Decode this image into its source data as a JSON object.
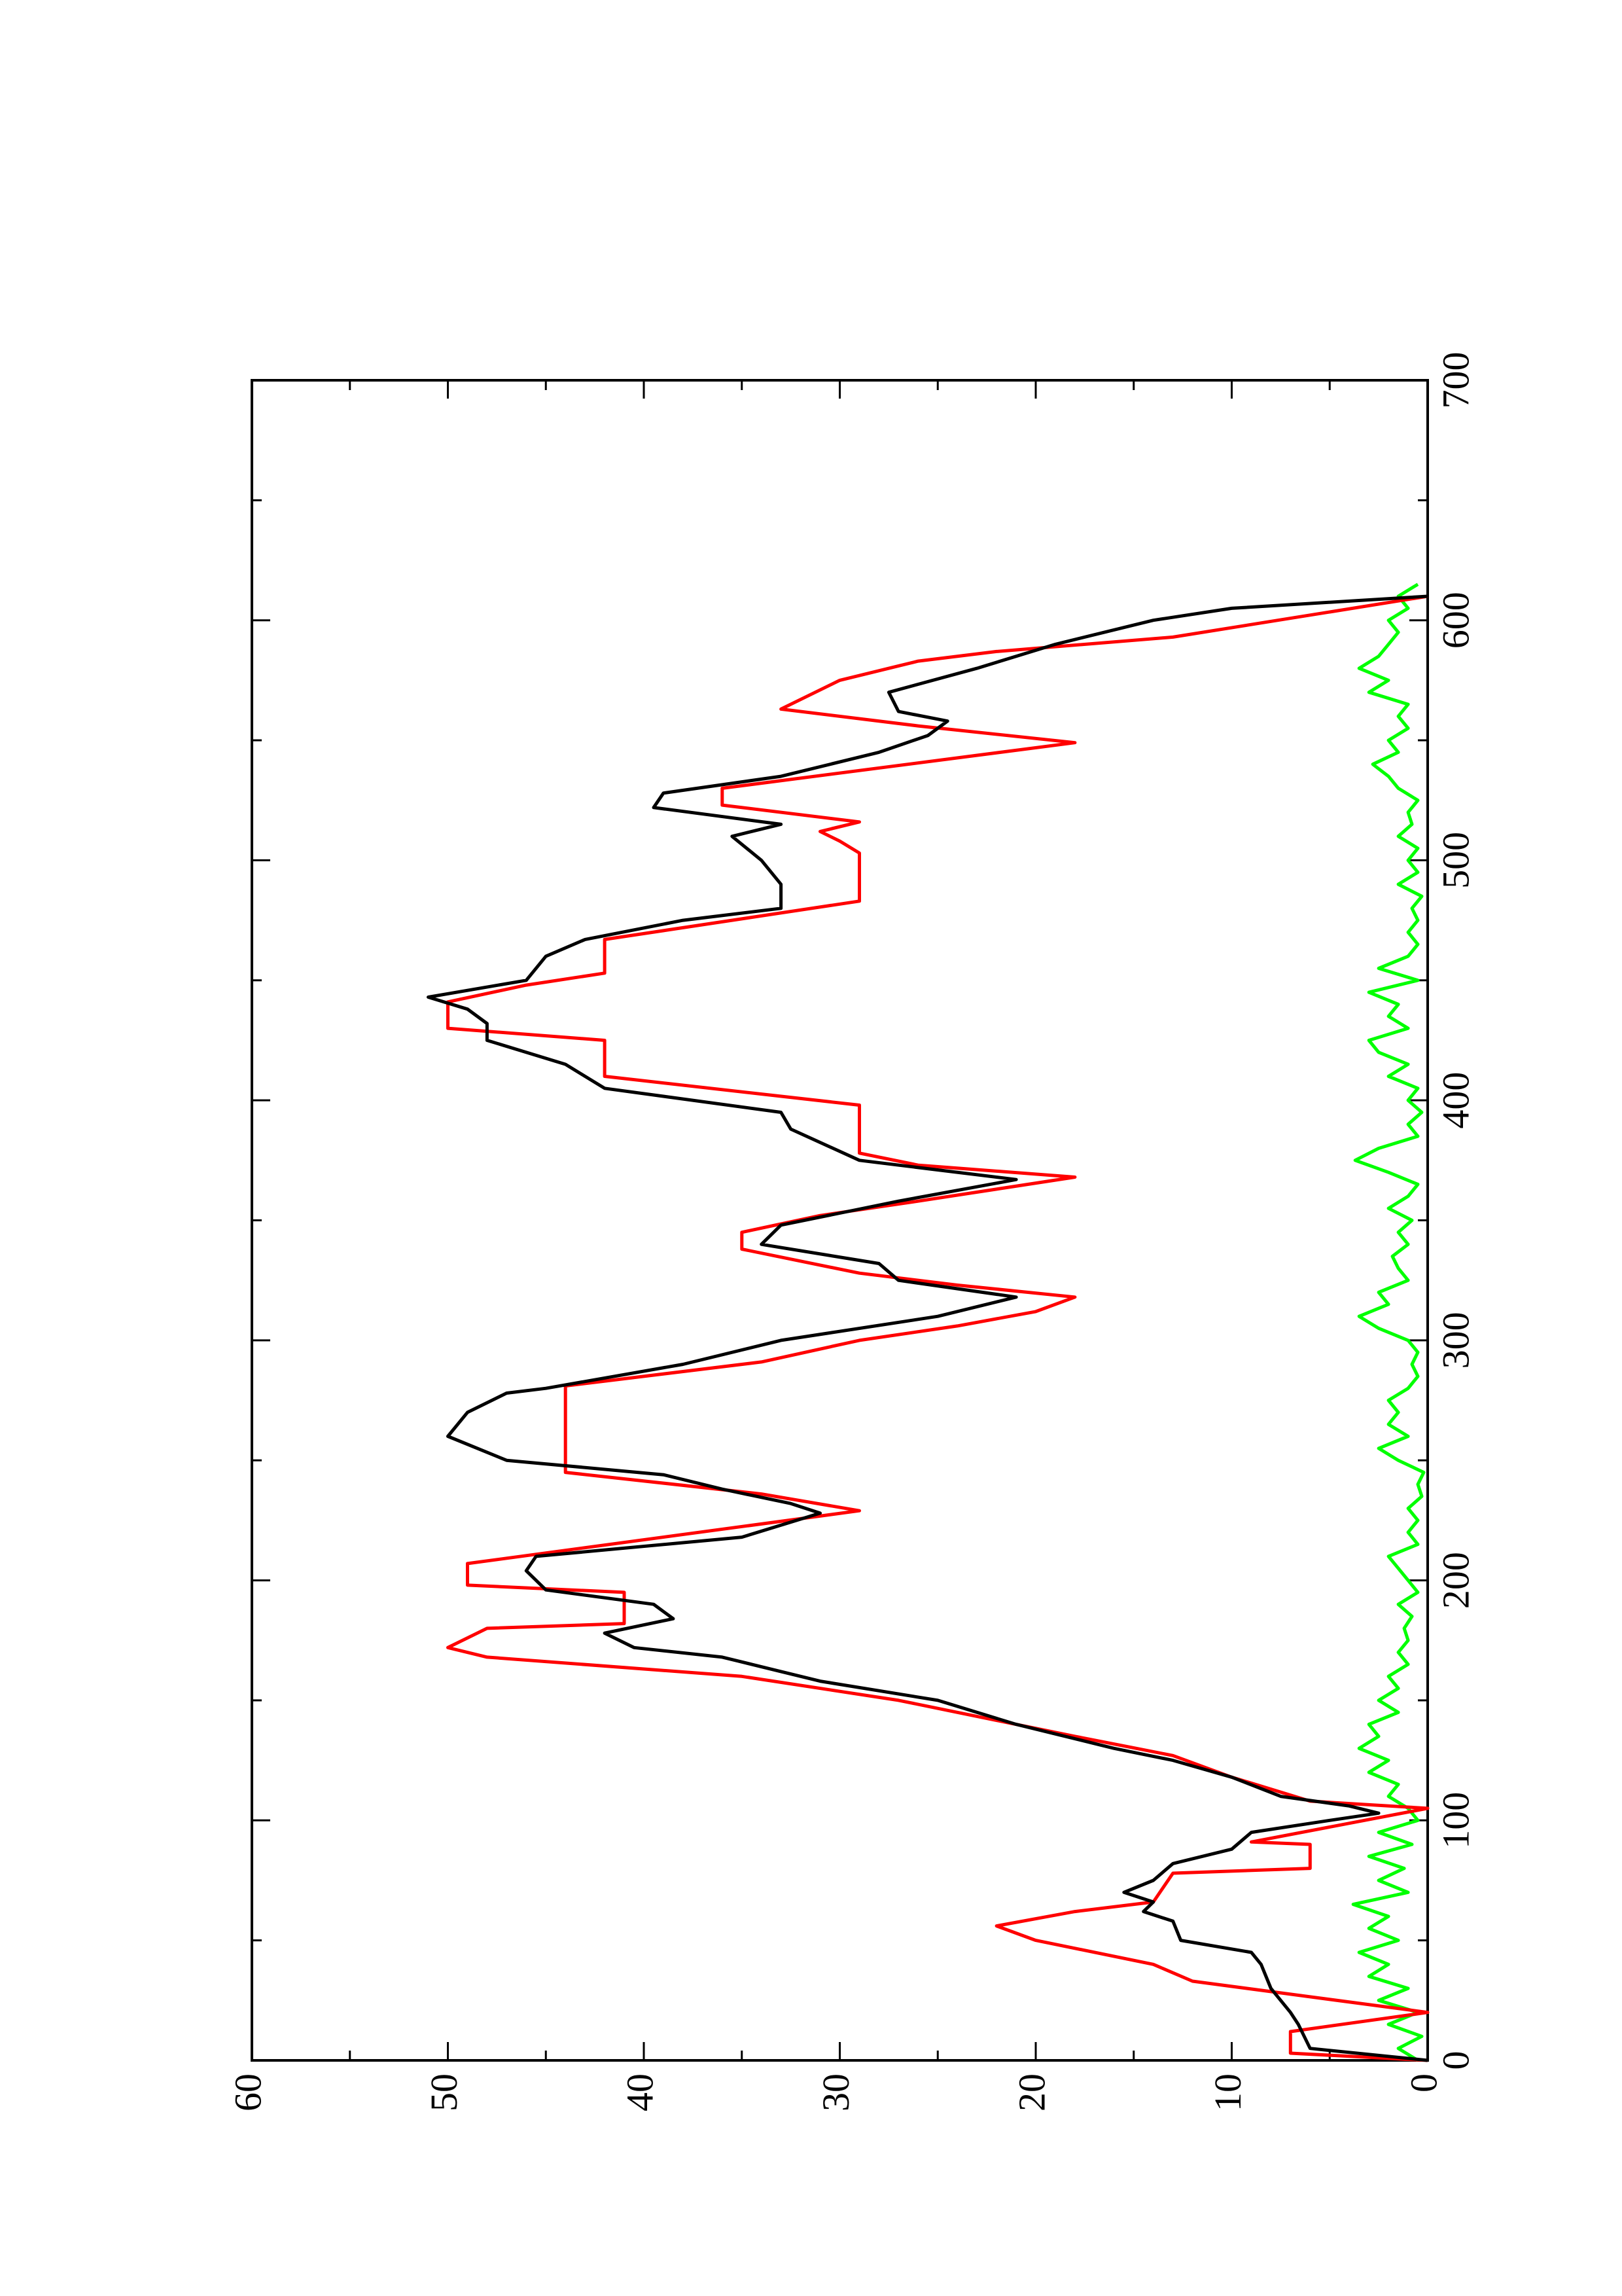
{
  "chart_data": {
    "type": "line",
    "xlim": [
      0,
      700
    ],
    "xticks": [
      0,
      100,
      200,
      300,
      400,
      500,
      600,
      700
    ],
    "xminorticks": [
      50,
      150,
      250,
      350,
      450,
      550,
      650
    ],
    "ylim": [
      0,
      60
    ],
    "yticks": [
      0,
      10,
      20,
      30,
      40,
      50,
      60
    ],
    "yminorticks": [
      5,
      15,
      25,
      35,
      45,
      55
    ],
    "rotated": true,
    "series": [
      {
        "color": "#00ff00",
        "x": [
          0,
          5,
          10,
          15,
          20,
          25,
          30,
          35,
          40,
          45,
          50,
          55,
          60,
          65,
          70,
          75,
          80,
          85,
          90,
          95,
          100,
          105,
          110,
          115,
          120,
          125,
          130,
          135,
          140,
          145,
          150,
          155,
          160,
          165,
          170,
          175,
          180,
          185,
          190,
          195,
          200,
          205,
          210,
          215,
          220,
          225,
          230,
          235,
          240,
          245,
          250,
          255,
          260,
          265,
          270,
          275,
          280,
          285,
          290,
          295,
          300,
          305,
          310,
          315,
          320,
          325,
          330,
          335,
          340,
          345,
          350,
          355,
          360,
          365,
          370,
          375,
          380,
          385,
          390,
          395,
          400,
          405,
          410,
          415,
          420,
          425,
          430,
          435,
          440,
          445,
          450,
          455,
          460,
          465,
          470,
          475,
          480,
          485,
          490,
          495,
          500,
          505,
          510,
          515,
          520,
          525,
          530,
          535,
          540,
          545,
          550,
          555,
          560,
          565,
          570,
          575,
          580,
          585,
          590,
          595,
          600,
          605,
          610,
          615
        ],
        "values": [
          0.5,
          1.5,
          0.3,
          2,
          0.5,
          2.5,
          1,
          3,
          2,
          3.5,
          1.5,
          3,
          2,
          3.8,
          1,
          2.5,
          1.2,
          3,
          0.8,
          2.5,
          0.5,
          1,
          2,
          1.5,
          3,
          2,
          3.5,
          2.5,
          3,
          1.5,
          2.5,
          1.5,
          2,
          1,
          1.5,
          1,
          1.2,
          0.8,
          1.5,
          0.5,
          1,
          1.5,
          2,
          0.5,
          1,
          0.5,
          1,
          0.3,
          0.5,
          0.2,
          1.5,
          2.5,
          1,
          2,
          1.5,
          2,
          1,
          0.5,
          0.8,
          0.5,
          1,
          2.5,
          3.5,
          2,
          2.5,
          1,
          1.5,
          1.8,
          1,
          1.5,
          0.8,
          2,
          1,
          0.5,
          2,
          3.7,
          2.5,
          0.5,
          1,
          0.3,
          1,
          0.5,
          2,
          1,
          2.5,
          3,
          1,
          2,
          1.5,
          3,
          0.5,
          2.5,
          1,
          0.5,
          1,
          0.5,
          0.8,
          0.3,
          1.5,
          0.5,
          1,
          0.5,
          1.5,
          0.8,
          1,
          0.5,
          1.5,
          2,
          2.8,
          1.5,
          2,
          1,
          1.5,
          1,
          3,
          2,
          3.5,
          2.5,
          2,
          1.5,
          2,
          1,
          1.5,
          0.5
        ]
      },
      {
        "color": "#ff0000",
        "x": [
          0,
          3,
          12,
          20,
          33,
          40,
          50,
          56,
          62,
          66,
          78,
          80,
          90,
          91,
          105,
          108,
          118,
          127,
          135,
          145,
          150,
          160,
          168,
          172,
          180,
          182,
          195,
          198,
          207,
          229,
          236,
          245,
          281,
          291,
          300,
          306,
          312,
          318,
          323,
          328,
          338,
          345,
          352,
          358,
          368,
          373,
          378,
          398,
          410,
          425,
          430,
          441,
          448,
          453,
          467,
          483,
          503,
          508,
          512,
          516,
          523,
          530,
          549,
          556,
          563,
          575,
          583,
          587,
          593,
          610
        ],
        "values": [
          0,
          7,
          7,
          0,
          12,
          14,
          20,
          22,
          18,
          14,
          13,
          6,
          6,
          9,
          0,
          6,
          10,
          13,
          18,
          24,
          27,
          35,
          48,
          50,
          48,
          41,
          41,
          49,
          49,
          29,
          34,
          44,
          44,
          34,
          29,
          24,
          20,
          18,
          24,
          29,
          35,
          35,
          31,
          26,
          18,
          26,
          29,
          29,
          42,
          42,
          50,
          50,
          46,
          42,
          42,
          29,
          29,
          30,
          31,
          29,
          36,
          36,
          18,
          26,
          33,
          30,
          26,
          22,
          13,
          0
        ]
      },
      {
        "color": "#000000",
        "x": [
          0,
          5,
          10,
          15,
          20,
          30,
          40,
          45,
          50,
          58,
          62,
          66,
          70,
          75,
          82,
          88,
          95,
          100,
          103,
          106,
          110,
          118,
          125,
          130,
          140,
          150,
          158,
          162,
          168,
          172,
          178,
          184,
          190,
          196,
          204,
          210,
          218,
          228,
          232,
          238,
          244,
          250,
          260,
          270,
          278,
          280,
          290,
          300,
          310,
          318,
          325,
          332,
          340,
          348,
          358,
          367,
          375,
          388,
          395,
          405,
          415,
          425,
          432,
          438,
          443,
          450,
          460,
          467,
          475,
          480,
          490,
          500,
          510,
          515,
          522,
          528,
          535,
          545,
          552,
          558,
          562,
          570,
          580,
          590,
          600,
          605,
          610
        ],
        "values": [
          0,
          6,
          6.3,
          6.6,
          7,
          8,
          8.5,
          9,
          12.6,
          13,
          14.5,
          14,
          15.5,
          14,
          13,
          10,
          9,
          5,
          2.5,
          4,
          7.5,
          10,
          13,
          16,
          21,
          25,
          31,
          33,
          36,
          40.5,
          42,
          38.5,
          39.5,
          45,
          46,
          45.5,
          35,
          31,
          32.5,
          36,
          39,
          47,
          50,
          49,
          47,
          45,
          38,
          33,
          25,
          21,
          27,
          28,
          34,
          33,
          27,
          21,
          29,
          32.5,
          33,
          42,
          44,
          48,
          48,
          49,
          51,
          46,
          45,
          43,
          38,
          33,
          33,
          34,
          35.5,
          33,
          39.5,
          39,
          33,
          28,
          25.5,
          24.5,
          27,
          27.5,
          23,
          19,
          14,
          10,
          0
        ]
      }
    ]
  }
}
